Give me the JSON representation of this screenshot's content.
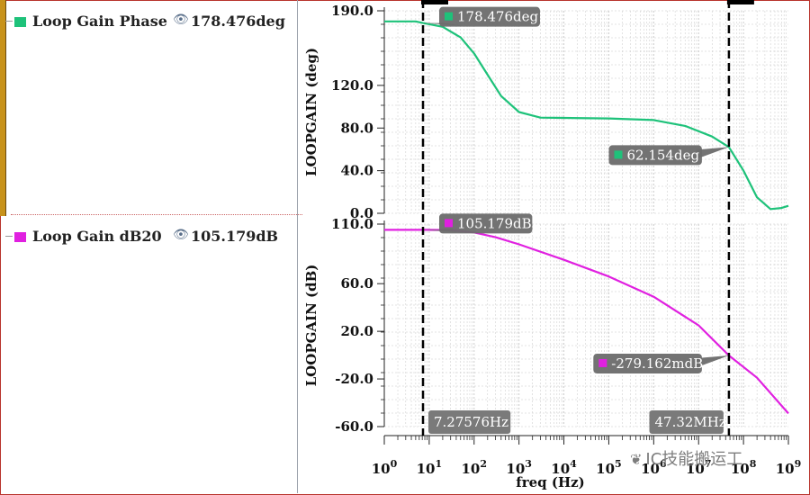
{
  "legend": {
    "items": [
      {
        "name": "Loop Gain Phase",
        "value": "178.476deg",
        "color": "#1ec27a"
      },
      {
        "name": "Loop Gain dB20",
        "value": "105.179dB",
        "color": "#e020e0"
      }
    ]
  },
  "watermark": {
    "text": "IC技能搬运工",
    "icon": "wechat-icon"
  },
  "markers": {
    "left": {
      "label": "7.27576Hz",
      "x": 7.27576
    },
    "right": {
      "label": "47.32MHz",
      "x": 47320000
    }
  },
  "chart_data": [
    {
      "type": "line",
      "ylabel": "LOOPGAIN (deg)",
      "xlabel": "",
      "x_scale": "log",
      "xlim": [
        1,
        1000000000
      ],
      "ylim": [
        0,
        190
      ],
      "yticks": [
        {
          "value": 190,
          "label": "190.0"
        },
        {
          "value": 120,
          "label": "120.0"
        },
        {
          "value": 80,
          "label": "80.0"
        },
        {
          "value": 40,
          "label": "40.0"
        },
        {
          "value": 0,
          "label": "0.0"
        }
      ],
      "series": [
        {
          "name": "Loop Gain Phase",
          "color": "#1ec27a",
          "points": [
            [
              1,
              180
            ],
            [
              5,
              180
            ],
            [
              7.27576,
              178.5
            ],
            [
              20,
              175
            ],
            [
              50,
              165
            ],
            [
              100,
              150
            ],
            [
              200,
              130
            ],
            [
              400,
              110
            ],
            [
              1000,
              95
            ],
            [
              3000,
              89.8
            ],
            [
              10000,
              89.5
            ],
            [
              100000,
              89
            ],
            [
              1000000,
              87.5
            ],
            [
              5000000,
              82
            ],
            [
              20000000,
              72
            ],
            [
              47320000,
              62.154
            ],
            [
              100000000,
              40
            ],
            [
              200000000,
              15
            ],
            [
              400000000,
              4
            ],
            [
              700000000,
              5
            ],
            [
              1000000000,
              7
            ]
          ]
        }
      ],
      "callouts": [
        {
          "x": 7.27576,
          "y": 178.476,
          "label": "178.476deg",
          "color": "#1ec27a"
        },
        {
          "x": 47320000,
          "y": 62.154,
          "label": "62.154deg",
          "color": "#1ec27a"
        }
      ]
    },
    {
      "type": "line",
      "ylabel": "LOOPGAIN (dB)",
      "xlabel": "freq (Hz)",
      "x_scale": "log",
      "xlim": [
        1,
        1000000000
      ],
      "ylim": [
        -60,
        110
      ],
      "yticks": [
        {
          "value": 110,
          "label": "110.0"
        },
        {
          "value": 60,
          "label": "60.0"
        },
        {
          "value": 20,
          "label": "20.0"
        },
        {
          "value": -20,
          "label": "-20.0"
        },
        {
          "value": -60,
          "label": "-60.0"
        }
      ],
      "xticks": [
        {
          "value": 1,
          "base": "10",
          "exp": "0"
        },
        {
          "value": 10,
          "base": "10",
          "exp": "1"
        },
        {
          "value": 100,
          "base": "10",
          "exp": "2"
        },
        {
          "value": 1000,
          "base": "10",
          "exp": "3"
        },
        {
          "value": 10000,
          "base": "10",
          "exp": "4"
        },
        {
          "value": 100000,
          "base": "10",
          "exp": "5"
        },
        {
          "value": 1000000,
          "base": "10",
          "exp": "6"
        },
        {
          "value": 10000000,
          "base": "10",
          "exp": "7"
        },
        {
          "value": 100000000,
          "base": "10",
          "exp": "8"
        },
        {
          "value": 1000000000,
          "base": "10",
          "exp": "9"
        }
      ],
      "series": [
        {
          "name": "Loop Gain dB20",
          "color": "#e020e0",
          "points": [
            [
              1,
              105.2
            ],
            [
              7.27576,
              105.179
            ],
            [
              30,
              105
            ],
            [
              100,
              103
            ],
            [
              300,
              99
            ],
            [
              1000,
              93
            ],
            [
              10000,
              80
            ],
            [
              100000,
              66
            ],
            [
              1000000,
              49
            ],
            [
              10000000,
              25
            ],
            [
              47320000,
              -0.279
            ],
            [
              200000000,
              -19
            ],
            [
              1000000000,
              -49
            ]
          ]
        }
      ],
      "callouts": [
        {
          "x": 7.27576,
          "y": 105.179,
          "label": "105.179dB",
          "color": "#e020e0"
        },
        {
          "x": 47320000,
          "y": -0.279162,
          "label": "-279.162mdB",
          "color": "#e020e0"
        }
      ]
    }
  ]
}
